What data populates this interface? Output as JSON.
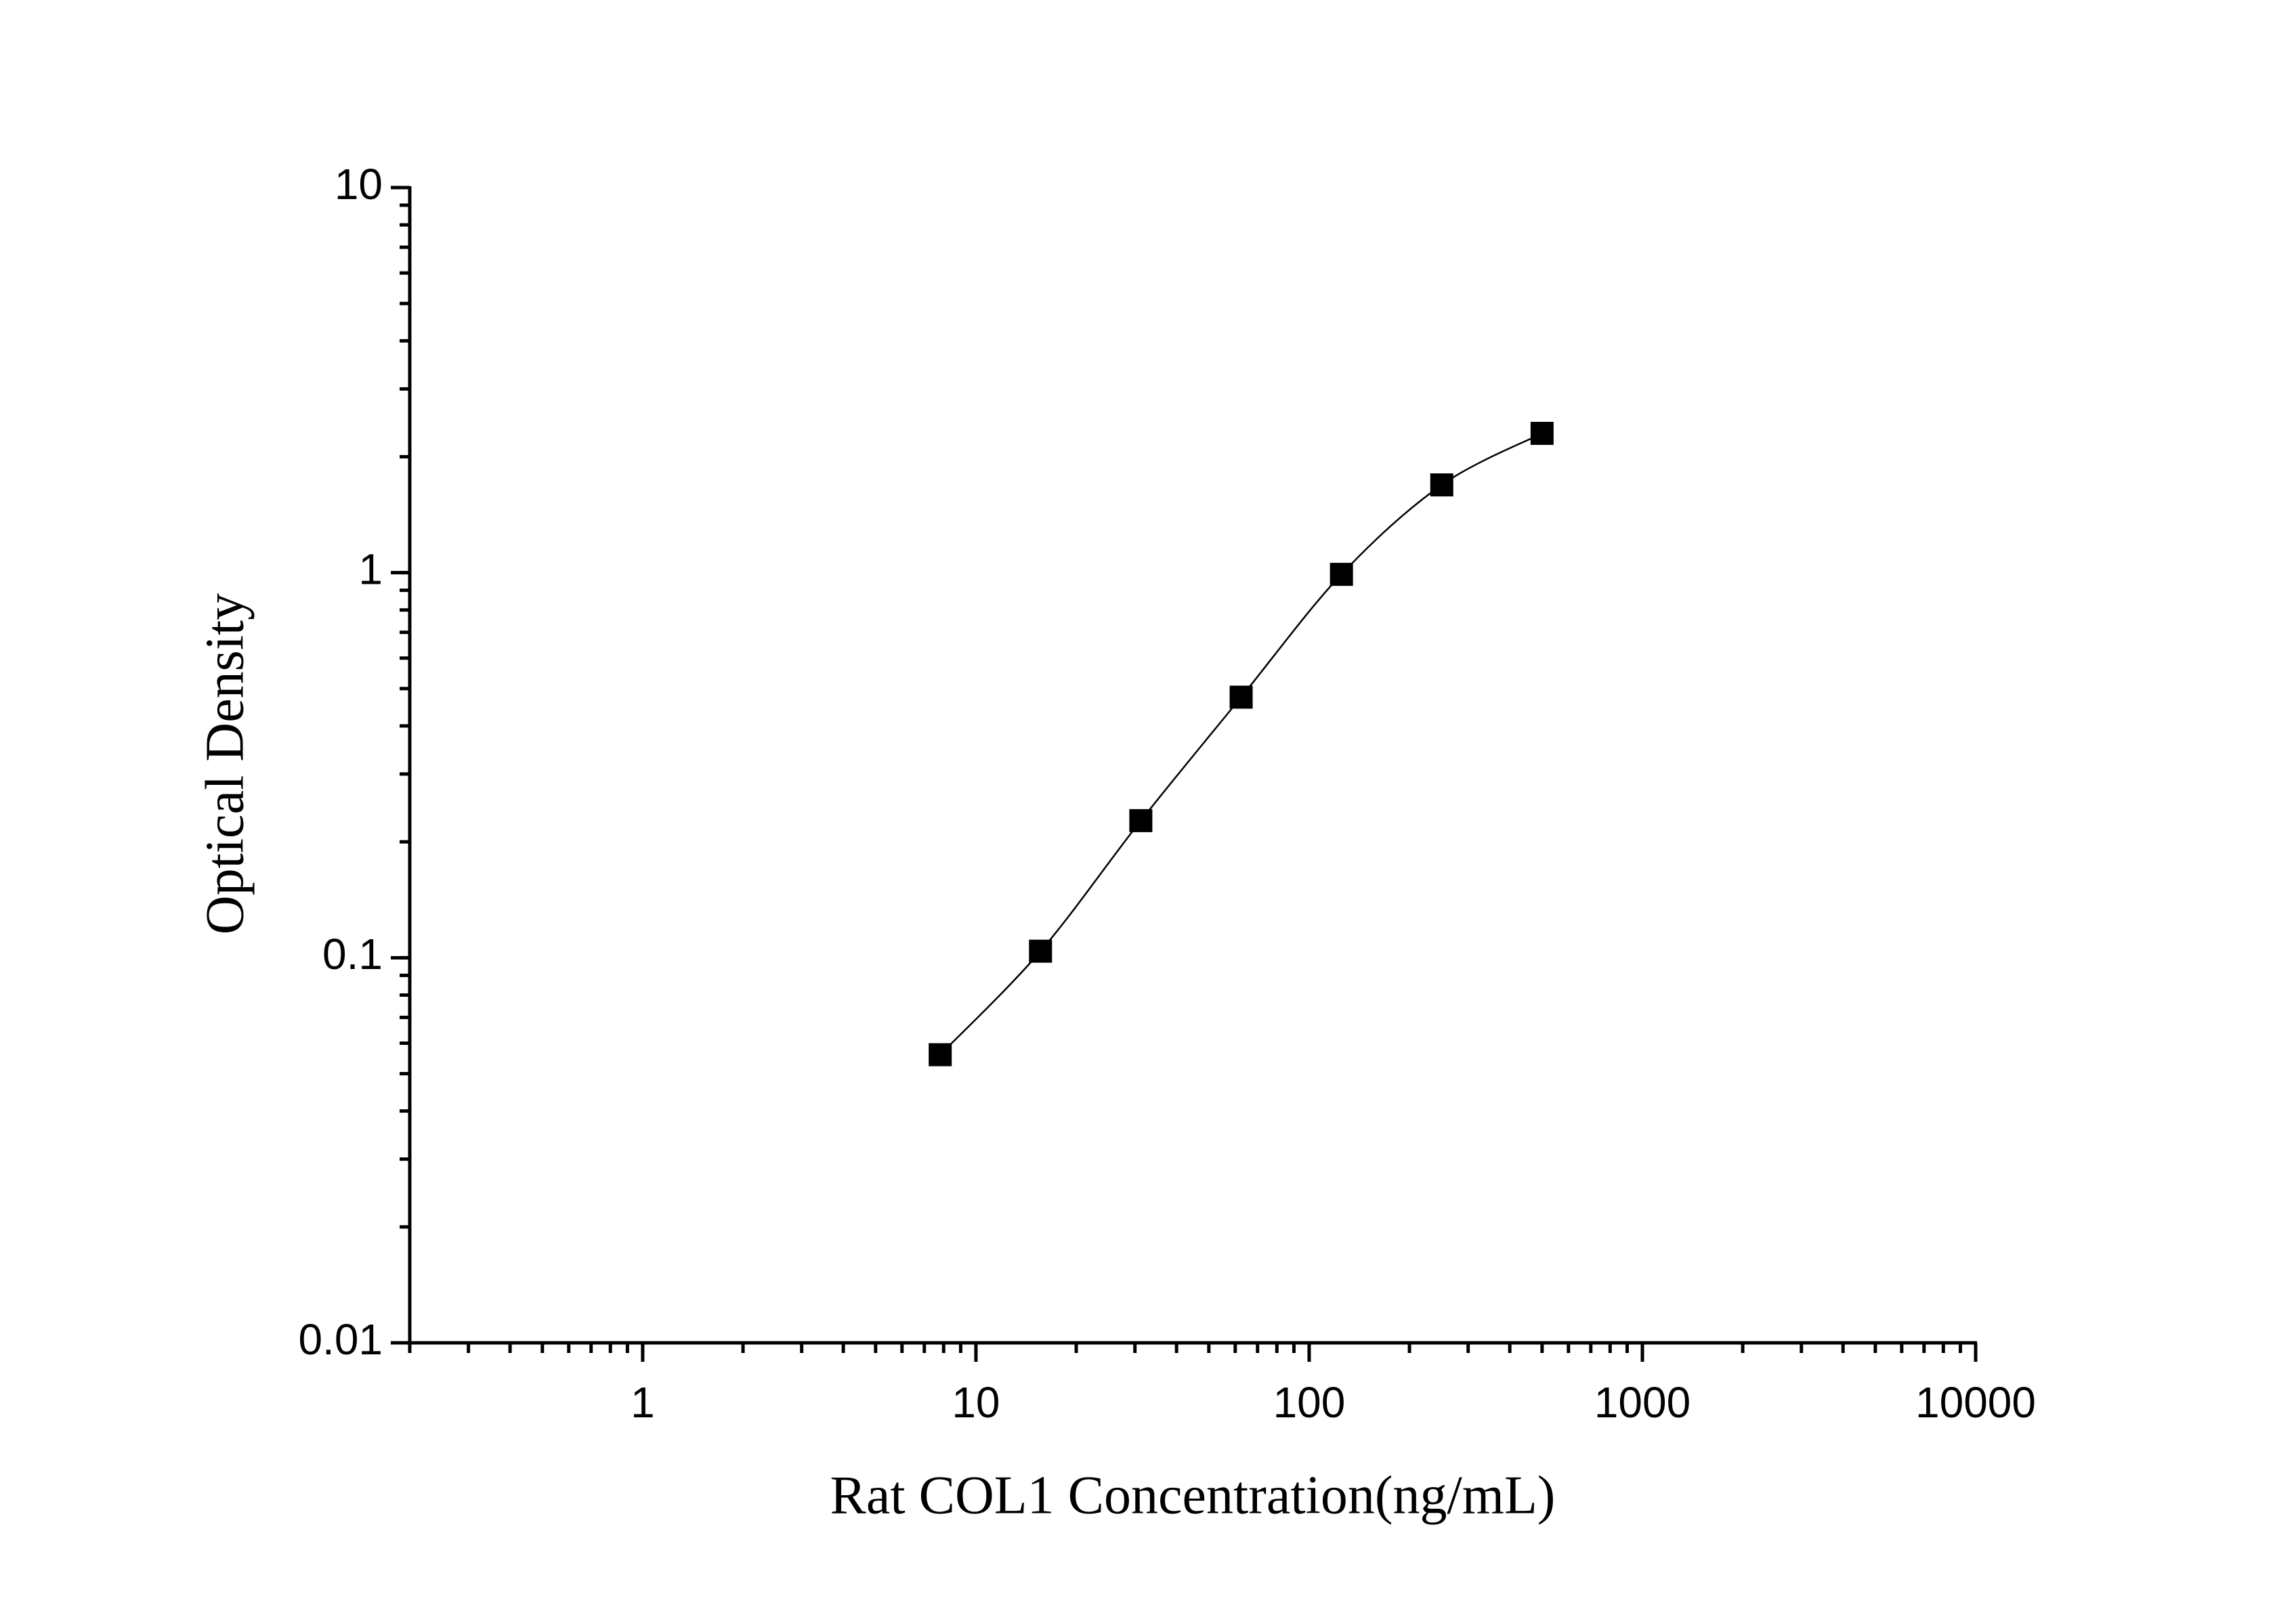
{
  "chart_data": {
    "type": "scatter",
    "x_label": "Rat COL1 Concentration(ng/mL)",
    "y_label": "Optical Density",
    "xscale": "log",
    "yscale": "log",
    "xlim": [
      0.2,
      10000
    ],
    "xticks": [
      1,
      10,
      100,
      1000,
      10000
    ],
    "ylim": [
      0.01,
      10
    ],
    "yticks": [
      0.01,
      0.1,
      1,
      10
    ],
    "fit_curve": true,
    "series": [
      {
        "color": "#000000",
        "x": [
          7.8125,
          15.625,
          31.25,
          62.5,
          125,
          250,
          500
        ],
        "values": [
          0.056,
          0.104,
          0.227,
          0.475,
          0.99,
          1.69,
          2.3
        ]
      }
    ]
  }
}
